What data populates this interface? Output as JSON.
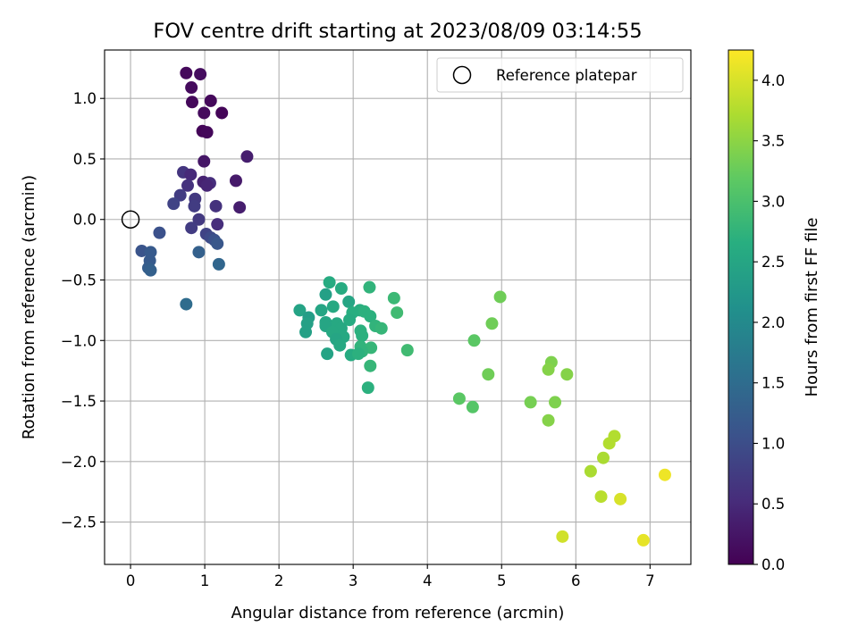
{
  "chart_data": {
    "type": "scatter",
    "title": "FOV centre drift starting at 2023/08/09 03:14:55",
    "xlabel": "Angular distance from reference (arcmin)",
    "ylabel": "Rotation from reference (arcmin)",
    "xlim": [
      -0.35,
      7.55
    ],
    "ylim": [
      -2.85,
      1.4
    ],
    "xticks": [
      0,
      1,
      2,
      3,
      4,
      5,
      6,
      7
    ],
    "xtick_labels": [
      "0",
      "1",
      "2",
      "3",
      "4",
      "5",
      "6",
      "7"
    ],
    "yticks": [
      1.0,
      0.5,
      0.0,
      -0.5,
      -1.0,
      -1.5,
      -2.0,
      -2.5
    ],
    "ytick_labels": [
      "1.0",
      "0.5",
      "0.0",
      "−0.5",
      "−1.0",
      "−1.5",
      "−2.0",
      "−2.5"
    ],
    "grid": true,
    "legend": {
      "position": "top-right",
      "label": "Reference platepar"
    },
    "reference_point": {
      "x": 0,
      "y": 0,
      "marker": "open-circle"
    },
    "colorbar": {
      "label": "Hours from first FF file",
      "colormap": "viridis",
      "range": [
        0.0,
        4.25
      ],
      "ticks": [
        0.0,
        0.5,
        1.0,
        1.5,
        2.0,
        2.5,
        3.0,
        3.5,
        4.0
      ],
      "tick_labels": [
        "0.0",
        "0.5",
        "1.0",
        "1.5",
        "2.0",
        "2.5",
        "3.0",
        "3.5",
        "4.0"
      ]
    },
    "points": [
      {
        "x": 0.75,
        "y": 1.21,
        "t": 0.1
      },
      {
        "x": 0.94,
        "y": 1.2,
        "t": 0.15
      },
      {
        "x": 0.82,
        "y": 1.09,
        "t": 0.12
      },
      {
        "x": 1.08,
        "y": 0.98,
        "t": 0.1
      },
      {
        "x": 0.83,
        "y": 0.97,
        "t": 0.08
      },
      {
        "x": 0.99,
        "y": 0.88,
        "t": 0.12
      },
      {
        "x": 1.23,
        "y": 0.88,
        "t": 0.05
      },
      {
        "x": 0.97,
        "y": 0.73,
        "t": 0.05
      },
      {
        "x": 1.03,
        "y": 0.72,
        "t": 0.08
      },
      {
        "x": 1.57,
        "y": 0.52,
        "t": 0.35
      },
      {
        "x": 0.99,
        "y": 0.48,
        "t": 0.25
      },
      {
        "x": 0.71,
        "y": 0.39,
        "t": 0.65
      },
      {
        "x": 0.81,
        "y": 0.37,
        "t": 0.5
      },
      {
        "x": 1.42,
        "y": 0.32,
        "t": 0.3
      },
      {
        "x": 0.98,
        "y": 0.31,
        "t": 0.4
      },
      {
        "x": 1.07,
        "y": 0.3,
        "t": 0.55
      },
      {
        "x": 0.77,
        "y": 0.28,
        "t": 0.6
      },
      {
        "x": 1.03,
        "y": 0.28,
        "t": 0.45
      },
      {
        "x": 0.67,
        "y": 0.2,
        "t": 0.75
      },
      {
        "x": 0.87,
        "y": 0.17,
        "t": 0.7
      },
      {
        "x": 0.58,
        "y": 0.13,
        "t": 0.85
      },
      {
        "x": 0.86,
        "y": 0.11,
        "t": 0.75
      },
      {
        "x": 1.15,
        "y": 0.11,
        "t": 0.6
      },
      {
        "x": 1.47,
        "y": 0.1,
        "t": 0.35
      },
      {
        "x": 0.92,
        "y": 0.0,
        "t": 0.7
      },
      {
        "x": 1.17,
        "y": -0.04,
        "t": 0.55
      },
      {
        "x": 0.82,
        "y": -0.07,
        "t": 0.75
      },
      {
        "x": 1.02,
        "y": -0.12,
        "t": 0.85
      },
      {
        "x": 0.39,
        "y": -0.11,
        "t": 1.05
      },
      {
        "x": 1.08,
        "y": -0.15,
        "t": 0.95
      },
      {
        "x": 1.13,
        "y": -0.17,
        "t": 1.05
      },
      {
        "x": 1.17,
        "y": -0.2,
        "t": 1.15
      },
      {
        "x": 0.15,
        "y": -0.26,
        "t": 1.1
      },
      {
        "x": 0.27,
        "y": -0.27,
        "t": 1.2
      },
      {
        "x": 0.92,
        "y": -0.27,
        "t": 1.3
      },
      {
        "x": 0.26,
        "y": -0.34,
        "t": 1.2
      },
      {
        "x": 1.19,
        "y": -0.37,
        "t": 1.4
      },
      {
        "x": 0.24,
        "y": -0.4,
        "t": 1.25
      },
      {
        "x": 0.27,
        "y": -0.42,
        "t": 1.3
      },
      {
        "x": 0.75,
        "y": -0.7,
        "t": 1.5
      },
      {
        "x": 2.68,
        "y": -0.52,
        "t": 2.6
      },
      {
        "x": 2.63,
        "y": -0.62,
        "t": 2.4
      },
      {
        "x": 2.84,
        "y": -0.57,
        "t": 2.6
      },
      {
        "x": 3.22,
        "y": -0.56,
        "t": 2.75
      },
      {
        "x": 3.55,
        "y": -0.65,
        "t": 2.85
      },
      {
        "x": 2.94,
        "y": -0.68,
        "t": 2.5
      },
      {
        "x": 2.73,
        "y": -0.72,
        "t": 2.55
      },
      {
        "x": 2.28,
        "y": -0.75,
        "t": 2.45
      },
      {
        "x": 2.57,
        "y": -0.75,
        "t": 2.5
      },
      {
        "x": 3.09,
        "y": -0.75,
        "t": 2.65
      },
      {
        "x": 3.15,
        "y": -0.76,
        "t": 2.7
      },
      {
        "x": 3.59,
        "y": -0.77,
        "t": 2.9
      },
      {
        "x": 2.99,
        "y": -0.77,
        "t": 2.65
      },
      {
        "x": 2.4,
        "y": -0.81,
        "t": 2.35
      },
      {
        "x": 3.23,
        "y": -0.8,
        "t": 2.7
      },
      {
        "x": 2.95,
        "y": -0.83,
        "t": 2.6
      },
      {
        "x": 2.63,
        "y": -0.85,
        "t": 2.5
      },
      {
        "x": 2.38,
        "y": -0.86,
        "t": 2.4
      },
      {
        "x": 2.78,
        "y": -0.86,
        "t": 2.55
      },
      {
        "x": 3.3,
        "y": -0.88,
        "t": 2.75
      },
      {
        "x": 2.63,
        "y": -0.88,
        "t": 2.5
      },
      {
        "x": 3.38,
        "y": -0.9,
        "t": 2.8
      },
      {
        "x": 2.84,
        "y": -0.9,
        "t": 2.55
      },
      {
        "x": 2.36,
        "y": -0.93,
        "t": 2.4
      },
      {
        "x": 3.1,
        "y": -0.92,
        "t": 2.7
      },
      {
        "x": 2.72,
        "y": -0.93,
        "t": 2.55
      },
      {
        "x": 3.12,
        "y": -0.96,
        "t": 2.7
      },
      {
        "x": 2.87,
        "y": -0.97,
        "t": 2.55
      },
      {
        "x": 2.77,
        "y": -0.99,
        "t": 2.5
      },
      {
        "x": 2.82,
        "y": -1.04,
        "t": 2.55
      },
      {
        "x": 3.1,
        "y": -1.05,
        "t": 2.75
      },
      {
        "x": 3.24,
        "y": -1.06,
        "t": 2.8
      },
      {
        "x": 3.73,
        "y": -1.08,
        "t": 2.9
      },
      {
        "x": 3.12,
        "y": -1.09,
        "t": 2.75
      },
      {
        "x": 2.65,
        "y": -1.11,
        "t": 2.45
      },
      {
        "x": 2.97,
        "y": -1.12,
        "t": 2.6
      },
      {
        "x": 3.07,
        "y": -1.11,
        "t": 2.7
      },
      {
        "x": 3.23,
        "y": -1.21,
        "t": 2.8
      },
      {
        "x": 3.2,
        "y": -1.39,
        "t": 2.7
      },
      {
        "x": 4.98,
        "y": -0.64,
        "t": 3.3
      },
      {
        "x": 4.87,
        "y": -0.86,
        "t": 3.3
      },
      {
        "x": 4.63,
        "y": -1.0,
        "t": 3.15
      },
      {
        "x": 4.82,
        "y": -1.28,
        "t": 3.3
      },
      {
        "x": 4.43,
        "y": -1.48,
        "t": 3.15
      },
      {
        "x": 4.61,
        "y": -1.55,
        "t": 3.1
      },
      {
        "x": 5.67,
        "y": -1.18,
        "t": 3.4
      },
      {
        "x": 5.63,
        "y": -1.24,
        "t": 3.45
      },
      {
        "x": 5.88,
        "y": -1.28,
        "t": 3.45
      },
      {
        "x": 5.39,
        "y": -1.51,
        "t": 3.35
      },
      {
        "x": 5.72,
        "y": -1.51,
        "t": 3.4
      },
      {
        "x": 5.63,
        "y": -1.66,
        "t": 3.45
      },
      {
        "x": 6.52,
        "y": -1.79,
        "t": 3.75
      },
      {
        "x": 6.45,
        "y": -1.85,
        "t": 3.75
      },
      {
        "x": 6.37,
        "y": -1.97,
        "t": 3.7
      },
      {
        "x": 6.2,
        "y": -2.08,
        "t": 3.7
      },
      {
        "x": 7.2,
        "y": -2.11,
        "t": 4.15
      },
      {
        "x": 6.34,
        "y": -2.29,
        "t": 3.8
      },
      {
        "x": 6.6,
        "y": -2.31,
        "t": 4.0
      },
      {
        "x": 5.82,
        "y": -2.62,
        "t": 3.95
      },
      {
        "x": 6.91,
        "y": -2.65,
        "t": 4.1
      }
    ]
  }
}
